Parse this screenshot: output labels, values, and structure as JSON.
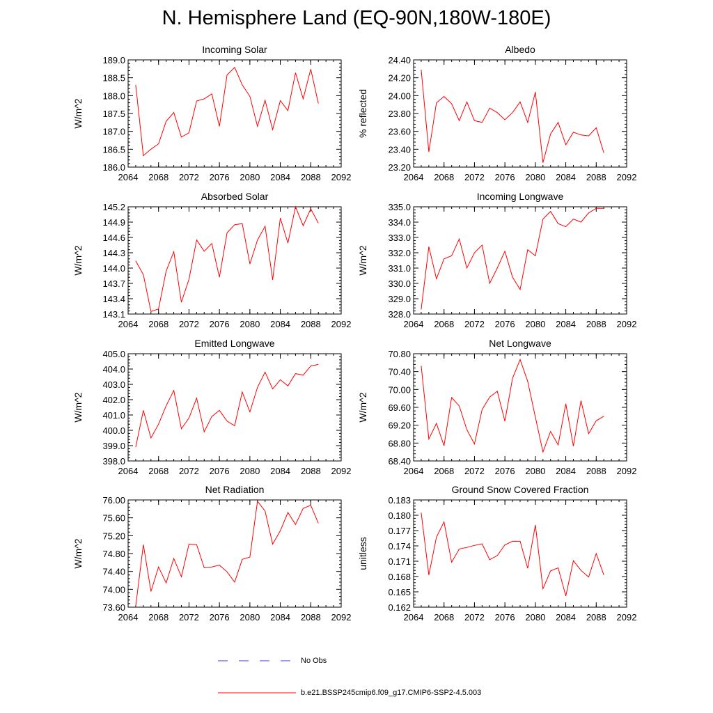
{
  "title": "N. Hemisphere Land (EQ-90N,180W-180E)",
  "colors": {
    "model": "#ff0000",
    "obs": "#3c3ccc",
    "axis": "#000000"
  },
  "legend": {
    "obs_label": "No Obs",
    "model_label": "b.e21.BSSP245cmip6.f09_g17.CMIP6-SSP2-4.5.003"
  },
  "chart_data": [
    {
      "type": "line",
      "title": "Incoming Solar",
      "ylabel": "W/m^2",
      "xlabel": "",
      "xlim": [
        2064,
        2092
      ],
      "xticks": [
        2064,
        2068,
        2072,
        2076,
        2080,
        2084,
        2088,
        2092
      ],
      "ylim": [
        186.0,
        189.0
      ],
      "yticks": [
        186.0,
        186.5,
        187.0,
        187.5,
        188.0,
        188.5,
        189.0
      ],
      "ytick_labels": [
        "186.0",
        "186.5",
        "187.0",
        "187.5",
        "188.0",
        "188.5",
        "189.0"
      ],
      "x": [
        2065,
        2066,
        2067,
        2068,
        2069,
        2070,
        2071,
        2072,
        2073,
        2074,
        2075,
        2076,
        2077,
        2078,
        2079,
        2080,
        2081,
        2082,
        2083,
        2084,
        2085,
        2086,
        2087,
        2088,
        2089
      ],
      "series": [
        {
          "name": "b.e21.BSSP245cmip6.f09_g17.CMIP6-SSP2-4.5.003",
          "values": [
            188.3,
            186.32,
            186.5,
            186.65,
            187.28,
            187.53,
            186.84,
            186.96,
            187.85,
            187.91,
            188.05,
            187.14,
            188.58,
            188.79,
            188.3,
            187.98,
            187.14,
            187.87,
            187.05,
            187.86,
            187.58,
            188.64,
            187.91,
            188.74,
            187.78
          ]
        }
      ]
    },
    {
      "type": "line",
      "title": "Albedo",
      "ylabel": "% reflected",
      "xlabel": "",
      "xlim": [
        2064,
        2092
      ],
      "xticks": [
        2064,
        2068,
        2072,
        2076,
        2080,
        2084,
        2088,
        2092
      ],
      "ylim": [
        23.2,
        24.4
      ],
      "yticks": [
        23.2,
        23.4,
        23.6,
        23.8,
        24.0,
        24.2,
        24.4
      ],
      "ytick_labels": [
        "23.20",
        "23.40",
        "23.60",
        "23.80",
        "24.00",
        "24.20",
        "24.40"
      ],
      "x": [
        2065,
        2066,
        2067,
        2068,
        2069,
        2070,
        2071,
        2072,
        2073,
        2074,
        2075,
        2076,
        2077,
        2078,
        2079,
        2080,
        2081,
        2082,
        2083,
        2084,
        2085,
        2086,
        2087,
        2088,
        2089
      ],
      "series": [
        {
          "name": "b.e21.BSSP245cmip6.f09_g17.CMIP6-SSP2-4.5.003",
          "values": [
            24.29,
            23.37,
            23.92,
            23.99,
            23.91,
            23.72,
            23.93,
            23.72,
            23.7,
            23.86,
            23.81,
            23.73,
            23.81,
            23.93,
            23.7,
            24.04,
            23.25,
            23.57,
            23.7,
            23.45,
            23.59,
            23.56,
            23.55,
            23.64,
            23.36
          ]
        }
      ]
    },
    {
      "type": "line",
      "title": "Absorbed Solar",
      "ylabel": "W/m^2",
      "xlabel": "",
      "xlim": [
        2064,
        2092
      ],
      "xticks": [
        2064,
        2068,
        2072,
        2076,
        2080,
        2084,
        2088,
        2092
      ],
      "ylim": [
        143.1,
        145.2
      ],
      "yticks": [
        143.1,
        143.4,
        143.7,
        144.0,
        144.3,
        144.6,
        144.9,
        145.2
      ],
      "ytick_labels": [
        "143.1",
        "143.4",
        "143.7",
        "144.0",
        "144.3",
        "144.6",
        "144.9",
        "145.2"
      ],
      "x": [
        2065,
        2066,
        2067,
        2068,
        2069,
        2070,
        2071,
        2072,
        2073,
        2074,
        2075,
        2076,
        2077,
        2078,
        2079,
        2080,
        2081,
        2082,
        2083,
        2084,
        2085,
        2086,
        2087,
        2088,
        2089
      ],
      "series": [
        {
          "name": "b.e21.BSSP245cmip6.f09_g17.CMIP6-SSP2-4.5.003",
          "values": [
            144.14,
            143.87,
            143.15,
            143.2,
            143.94,
            144.32,
            143.33,
            143.78,
            144.55,
            144.33,
            144.48,
            143.82,
            144.69,
            144.85,
            144.87,
            144.08,
            144.55,
            144.82,
            143.77,
            144.98,
            144.49,
            145.2,
            144.83,
            145.16,
            144.88
          ]
        }
      ]
    },
    {
      "type": "line",
      "title": "Incoming Longwave",
      "ylabel": "W/m^2",
      "xlabel": "",
      "xlim": [
        2064,
        2092
      ],
      "xticks": [
        2064,
        2068,
        2072,
        2076,
        2080,
        2084,
        2088,
        2092
      ],
      "ylim": [
        328.0,
        335.0
      ],
      "yticks": [
        328,
        329,
        330,
        331,
        332,
        333,
        334,
        335
      ],
      "ytick_labels": [
        "328.0",
        "329.0",
        "330.0",
        "331.0",
        "332.0",
        "333.0",
        "334.0",
        "335.0"
      ],
      "x": [
        2065,
        2066,
        2067,
        2068,
        2069,
        2070,
        2071,
        2072,
        2073,
        2074,
        2075,
        2076,
        2077,
        2078,
        2079,
        2080,
        2081,
        2082,
        2083,
        2084,
        2085,
        2086,
        2087,
        2088,
        2089
      ],
      "series": [
        {
          "name": "b.e21.BSSP245cmip6.f09_g17.CMIP6-SSP2-4.5.003",
          "values": [
            328.3,
            332.4,
            330.3,
            331.6,
            331.8,
            332.9,
            331.0,
            332.0,
            332.5,
            330.0,
            331.0,
            332.1,
            330.4,
            329.6,
            332.2,
            331.8,
            334.2,
            334.7,
            333.9,
            333.7,
            334.2,
            334.0,
            334.6,
            334.9,
            334.9
          ]
        }
      ]
    },
    {
      "type": "line",
      "title": "Emitted Longwave",
      "ylabel": "W/m^2",
      "xlabel": "",
      "xlim": [
        2064,
        2092
      ],
      "xticks": [
        2064,
        2068,
        2072,
        2076,
        2080,
        2084,
        2088,
        2092
      ],
      "ylim": [
        398.0,
        405.0
      ],
      "yticks": [
        398,
        399,
        400,
        401,
        402,
        403,
        404,
        405
      ],
      "ytick_labels": [
        "398.0",
        "399.0",
        "400.0",
        "401.0",
        "402.0",
        "403.0",
        "404.0",
        "405.0"
      ],
      "x": [
        2065,
        2066,
        2067,
        2068,
        2069,
        2070,
        2071,
        2072,
        2073,
        2074,
        2075,
        2076,
        2077,
        2078,
        2079,
        2080,
        2081,
        2082,
        2083,
        2084,
        2085,
        2086,
        2087,
        2088,
        2089
      ],
      "series": [
        {
          "name": "b.e21.BSSP245cmip6.f09_g17.CMIP6-SSP2-4.5.003",
          "values": [
            398.9,
            401.3,
            399.5,
            400.4,
            401.6,
            402.6,
            400.1,
            400.8,
            402.1,
            399.9,
            400.9,
            401.3,
            400.6,
            400.3,
            402.5,
            401.2,
            402.8,
            403.8,
            402.7,
            403.3,
            402.9,
            403.7,
            403.6,
            404.2,
            404.3
          ]
        }
      ]
    },
    {
      "type": "line",
      "title": "Net Longwave",
      "ylabel": "W/m^2",
      "xlabel": "",
      "xlim": [
        2064,
        2092
      ],
      "xticks": [
        2064,
        2068,
        2072,
        2076,
        2080,
        2084,
        2088,
        2092
      ],
      "ylim": [
        68.4,
        70.8
      ],
      "yticks": [
        68.4,
        68.8,
        69.2,
        69.6,
        70.0,
        70.4,
        70.8
      ],
      "ytick_labels": [
        "68.40",
        "68.80",
        "69.20",
        "69.60",
        "70.00",
        "70.40",
        "70.80"
      ],
      "x": [
        2065,
        2066,
        2067,
        2068,
        2069,
        2070,
        2071,
        2072,
        2073,
        2074,
        2075,
        2076,
        2077,
        2078,
        2079,
        2080,
        2081,
        2082,
        2083,
        2084,
        2085,
        2086,
        2087,
        2088,
        2089
      ],
      "series": [
        {
          "name": "b.e21.BSSP245cmip6.f09_g17.CMIP6-SSP2-4.5.003",
          "values": [
            70.53,
            68.89,
            69.24,
            68.74,
            69.82,
            69.63,
            69.1,
            68.78,
            69.55,
            69.83,
            69.96,
            69.29,
            70.25,
            70.67,
            70.18,
            69.38,
            68.6,
            69.06,
            68.76,
            69.68,
            68.73,
            69.75,
            69.01,
            69.3,
            69.4
          ]
        }
      ]
    },
    {
      "type": "line",
      "title": "Net Radiation",
      "ylabel": "W/m^2",
      "xlabel": "",
      "xlim": [
        2064,
        2092
      ],
      "xticks": [
        2064,
        2068,
        2072,
        2076,
        2080,
        2084,
        2088,
        2092
      ],
      "ylim": [
        73.6,
        76.0
      ],
      "yticks": [
        73.6,
        74.0,
        74.4,
        74.8,
        75.2,
        75.6,
        76.0
      ],
      "ytick_labels": [
        "73.60",
        "74.00",
        "74.40",
        "74.80",
        "75.20",
        "75.60",
        "76.00"
      ],
      "x": [
        2065,
        2066,
        2067,
        2068,
        2069,
        2070,
        2071,
        2072,
        2073,
        2074,
        2075,
        2076,
        2077,
        2078,
        2079,
        2080,
        2081,
        2082,
        2083,
        2084,
        2085,
        2086,
        2087,
        2088,
        2089
      ],
      "series": [
        {
          "name": "b.e21.BSSP245cmip6.f09_g17.CMIP6-SSP2-4.5.003",
          "values": [
            73.62,
            75.0,
            73.95,
            74.5,
            74.14,
            74.69,
            74.28,
            75.01,
            75.0,
            74.48,
            74.5,
            74.54,
            74.39,
            74.16,
            74.67,
            74.72,
            75.97,
            75.75,
            75.01,
            75.31,
            75.72,
            75.45,
            75.81,
            75.88,
            75.48
          ]
        }
      ]
    },
    {
      "type": "line",
      "title": "Ground Snow Covered Fraction",
      "ylabel": "unitless",
      "xlabel": "",
      "xlim": [
        2064,
        2092
      ],
      "xticks": [
        2064,
        2068,
        2072,
        2076,
        2080,
        2084,
        2088,
        2092
      ],
      "ylim": [
        0.162,
        0.183
      ],
      "yticks": [
        0.162,
        0.165,
        0.168,
        0.171,
        0.174,
        0.177,
        0.18,
        0.183
      ],
      "ytick_labels": [
        "0.162",
        "0.165",
        "0.168",
        "0.171",
        "0.174",
        "0.177",
        "0.180",
        "0.183"
      ],
      "x": [
        2065,
        2066,
        2067,
        2068,
        2069,
        2070,
        2071,
        2072,
        2073,
        2074,
        2075,
        2076,
        2077,
        2078,
        2079,
        2080,
        2081,
        2082,
        2083,
        2084,
        2085,
        2086,
        2087,
        2088,
        2089
      ],
      "series": [
        {
          "name": "b.e21.BSSP245cmip6.f09_g17.CMIP6-SSP2-4.5.003",
          "values": [
            0.1805,
            0.1683,
            0.1757,
            0.1787,
            0.1708,
            0.1734,
            0.1737,
            0.1741,
            0.1744,
            0.1713,
            0.1721,
            0.1742,
            0.1749,
            0.1749,
            0.1696,
            0.1781,
            0.1656,
            0.1691,
            0.1697,
            0.1642,
            0.1711,
            0.1692,
            0.1679,
            0.1725,
            0.1683
          ]
        }
      ]
    }
  ]
}
